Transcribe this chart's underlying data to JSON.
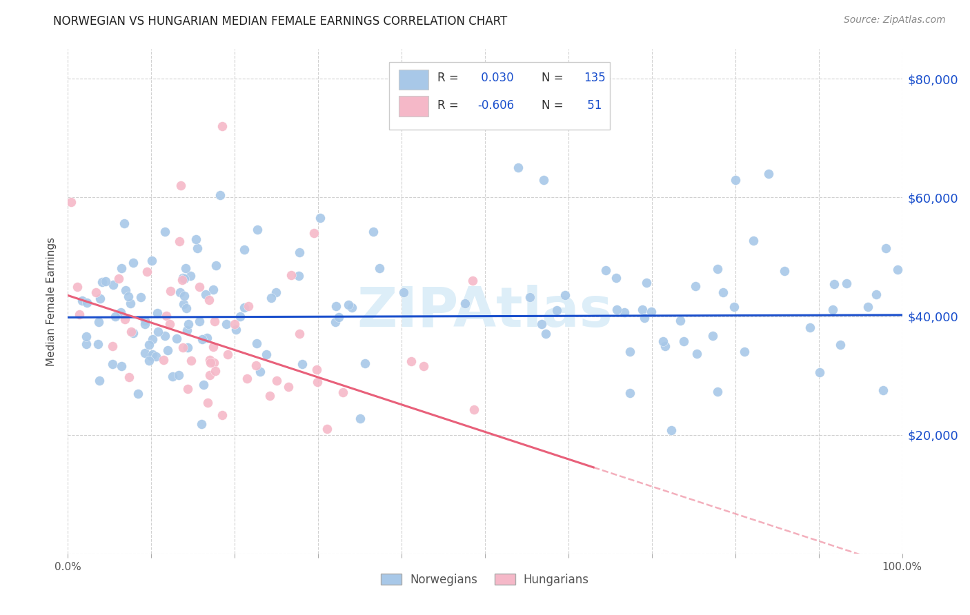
{
  "title": "NORWEGIAN VS HUNGARIAN MEDIAN FEMALE EARNINGS CORRELATION CHART",
  "source": "Source: ZipAtlas.com",
  "ylabel": "Median Female Earnings",
  "ytick_values": [
    0,
    20000,
    40000,
    60000,
    80000
  ],
  "ytick_labels": [
    "",
    "$20,000",
    "$40,000",
    "$60,000",
    "$80,000"
  ],
  "ylim": [
    0,
    85000
  ],
  "xlim": [
    0.0,
    1.0
  ],
  "r_norwegian": 0.03,
  "n_norwegian": 135,
  "r_hungarian": -0.606,
  "n_hungarian": 51,
  "blue_scatter_color": "#a8c8e8",
  "pink_scatter_color": "#f5b8c8",
  "blue_line_color": "#1a4fcc",
  "pink_line_color": "#e8607a",
  "blue_text_color": "#1a4fcc",
  "title_color": "#222222",
  "grid_color": "#cccccc",
  "background_color": "#ffffff",
  "watermark": "ZIPAtlas",
  "watermark_color": "#ddeef8",
  "legend_border_color": "#cccccc",
  "legend_bg": "#ffffff"
}
